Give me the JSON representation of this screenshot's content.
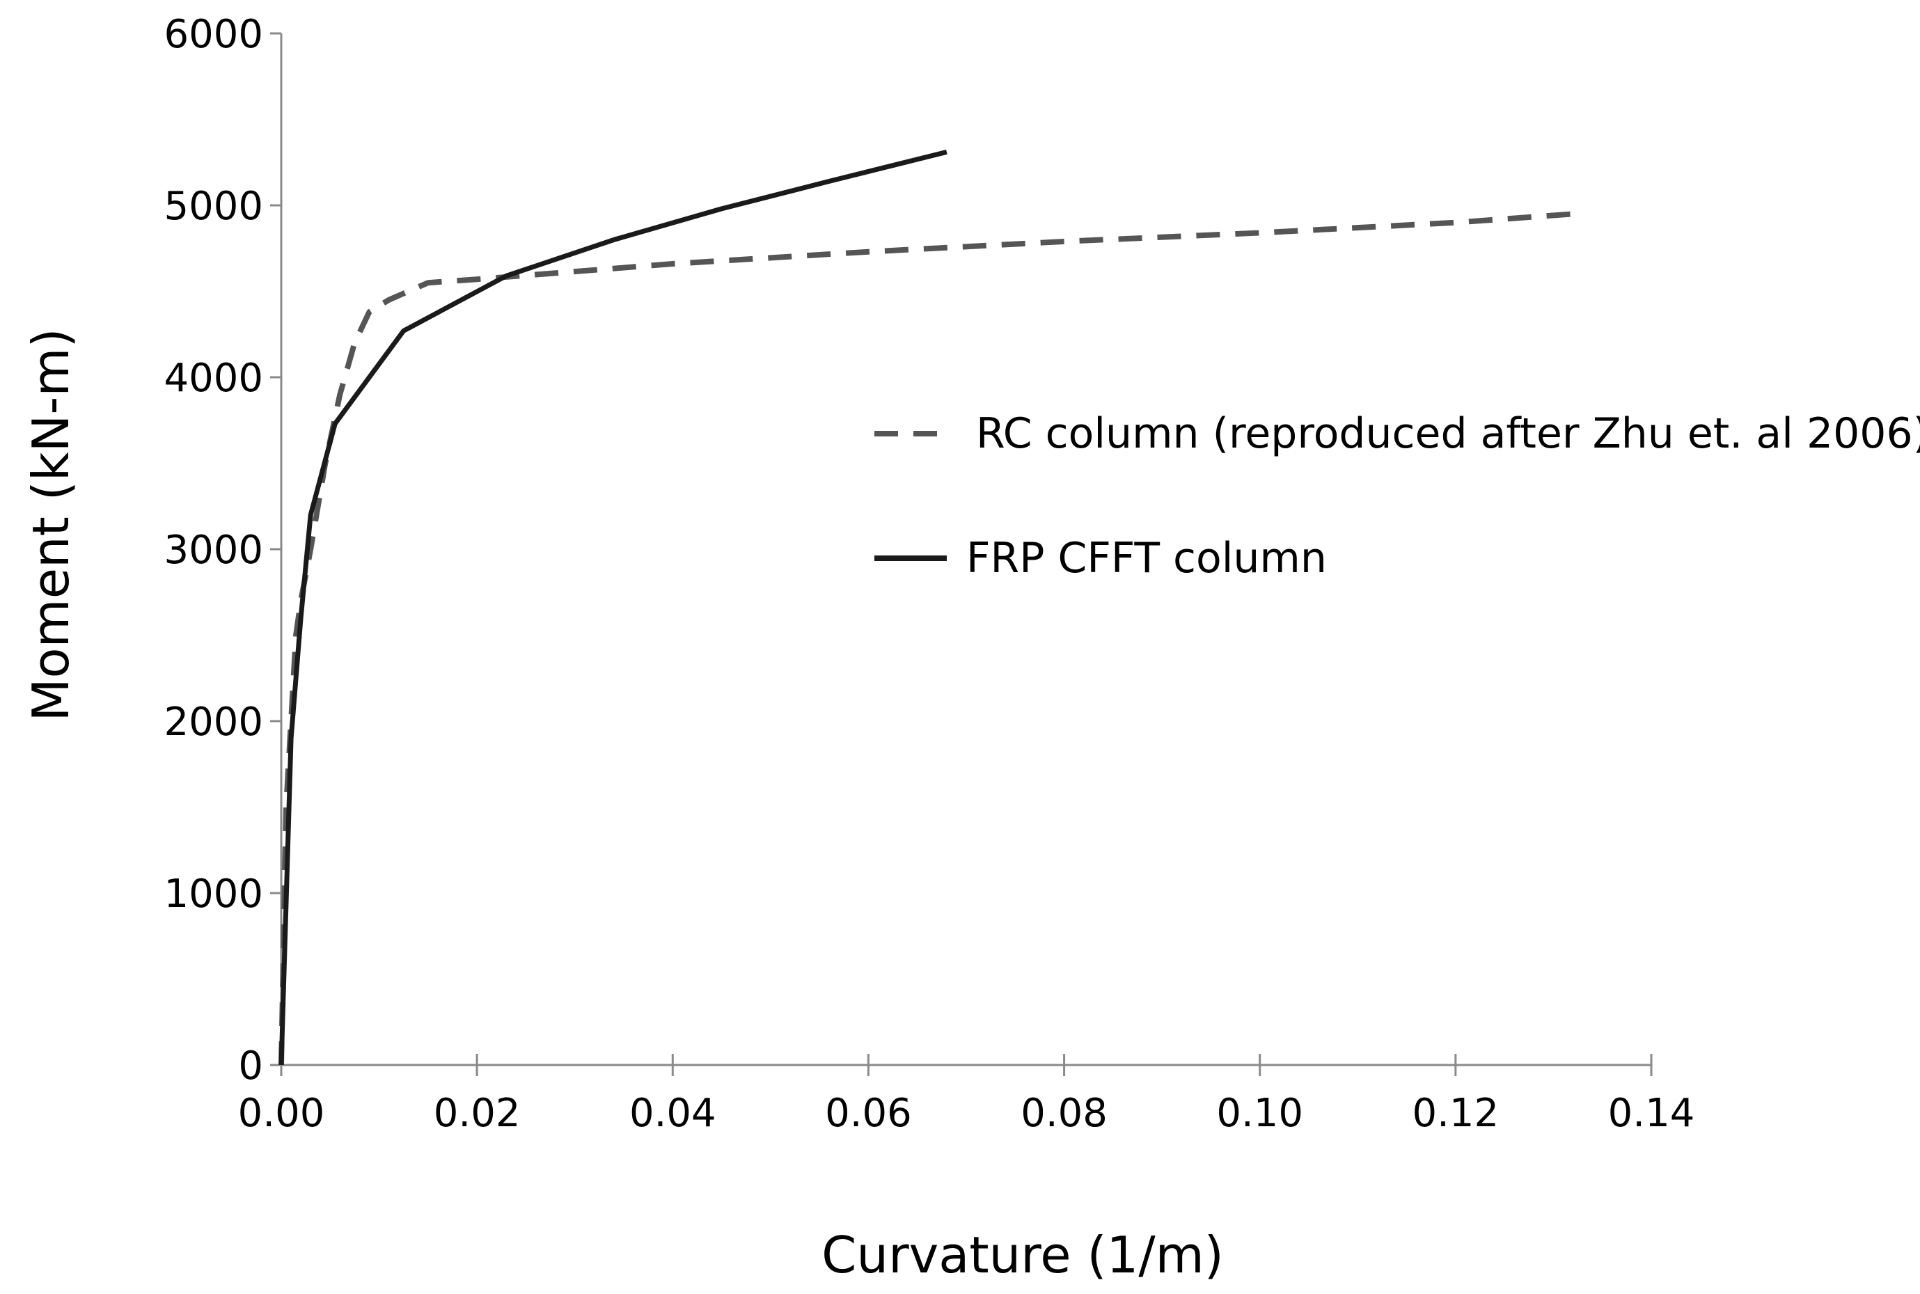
{
  "chart_data": {
    "type": "line",
    "title": "",
    "xlabel": "Curvature (1/m)",
    "ylabel": "Moment (kN-m)",
    "xlim": [
      0,
      0.14
    ],
    "ylim": [
      0,
      6000
    ],
    "x_ticks": [
      "0.00",
      "0.02",
      "0.04",
      "0.06",
      "0.08",
      "0.10",
      "0.12",
      "0.14"
    ],
    "y_ticks": [
      "0",
      "1000",
      "2000",
      "3000",
      "4000",
      "5000",
      "6000"
    ],
    "x_tick_values": [
      0,
      0.02,
      0.04,
      0.06,
      0.08,
      0.1,
      0.12,
      0.14
    ],
    "y_tick_values": [
      0,
      1000,
      2000,
      3000,
      4000,
      5000,
      6000
    ],
    "grid": "vertical-minor",
    "legend_position": "right-middle",
    "series": [
      {
        "name": "RC column (reproduced after Zhu et. al 2006)",
        "style": "dashed",
        "color": "#555555",
        "x": [
          0,
          0.0005,
          0.0015,
          0.002,
          0.003,
          0.0045,
          0.006,
          0.0075,
          0.009,
          0.011,
          0.015,
          0.02,
          0.04,
          0.06,
          0.08,
          0.1,
          0.12,
          0.132
        ],
        "y": [
          0,
          1500,
          2500,
          2700,
          3000,
          3500,
          3900,
          4200,
          4380,
          4450,
          4550,
          4570,
          4660,
          4730,
          4790,
          4840,
          4900,
          4950
        ]
      },
      {
        "name": "FRP CFFT column",
        "style": "solid",
        "color": "#1a1a1a",
        "x": [
          0,
          0.001,
          0.002,
          0.003,
          0.0055,
          0.0125,
          0.023,
          0.034,
          0.045,
          0.056,
          0.068
        ],
        "y": [
          0,
          1900,
          2600,
          3200,
          3730,
          4270,
          4590,
          4800,
          4980,
          5140,
          5310
        ]
      }
    ]
  }
}
